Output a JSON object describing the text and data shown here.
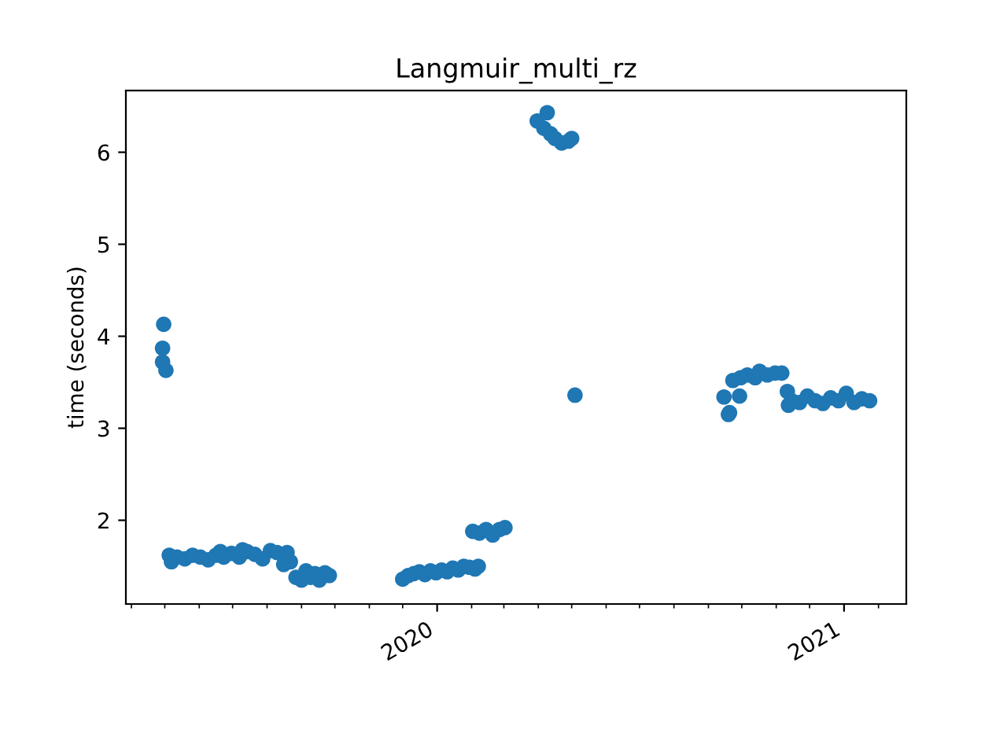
{
  "chart_data": {
    "type": "scatter",
    "title": "Langmuir_multi_rz",
    "ylabel": "time (seconds)",
    "marker": "circle",
    "grid": false,
    "legend": false,
    "xlim": [
      "2019-03-27",
      "2021-02-26"
    ],
    "xticks": [
      {
        "value": "2019-04-01",
        "label": null
      },
      {
        "value": "2019-05-01",
        "label": null
      },
      {
        "value": "2019-06-01",
        "label": null
      },
      {
        "value": "2019-07-01",
        "label": null
      },
      {
        "value": "2019-08-01",
        "label": null
      },
      {
        "value": "2019-09-01",
        "label": null
      },
      {
        "value": "2019-10-01",
        "label": null
      },
      {
        "value": "2019-11-01",
        "label": null
      },
      {
        "value": "2019-12-01",
        "label": null
      },
      {
        "value": "2020-01-01",
        "label": "2020"
      },
      {
        "value": "2020-02-01",
        "label": null
      },
      {
        "value": "2020-03-01",
        "label": null
      },
      {
        "value": "2020-04-01",
        "label": null
      },
      {
        "value": "2020-05-01",
        "label": null
      },
      {
        "value": "2020-06-01",
        "label": null
      },
      {
        "value": "2020-07-01",
        "label": null
      },
      {
        "value": "2020-08-01",
        "label": null
      },
      {
        "value": "2020-09-01",
        "label": null
      },
      {
        "value": "2020-10-01",
        "label": null
      },
      {
        "value": "2020-11-01",
        "label": null
      },
      {
        "value": "2020-12-01",
        "label": null
      },
      {
        "value": "2021-01-01",
        "label": "2021"
      },
      {
        "value": "2021-02-01",
        "label": null
      }
    ],
    "ylim": [
      1.09,
      6.67
    ],
    "yticks": [
      2,
      3,
      4,
      5,
      6
    ],
    "series": [
      {
        "color": "#1f77b4",
        "x": [
          "2019-04-30",
          "2019-04-29",
          "2019-04-29",
          "2019-05-02",
          "2019-05-05",
          "2019-05-07",
          "2019-05-12",
          "2019-05-19",
          "2019-05-26",
          "2019-06-02",
          "2019-06-09",
          "2019-06-16",
          "2019-06-23",
          "2019-06-30",
          "2019-07-07",
          "2019-07-14",
          "2019-07-21",
          "2019-07-28",
          "2019-08-04",
          "2019-08-10",
          "2019-07-10",
          "2019-06-20",
          "2019-08-16",
          "2019-08-19",
          "2019-08-22",
          "2019-08-27",
          "2019-09-01",
          "2019-09-05",
          "2019-09-09",
          "2019-09-13",
          "2019-09-17",
          "2019-09-22",
          "2019-09-26",
          "2019-12-01",
          "2019-12-06",
          "2019-12-11",
          "2019-12-16",
          "2019-12-21",
          "2019-12-26",
          "2019-12-31",
          "2020-01-05",
          "2020-01-10",
          "2020-01-15",
          "2020-01-20",
          "2020-01-25",
          "2020-01-30",
          "2020-02-04",
          "2020-02-07",
          "2020-02-02",
          "2020-02-08",
          "2020-02-14",
          "2020-02-20",
          "2020-02-26",
          "2020-03-02",
          "2020-03-31",
          "2020-04-09",
          "2020-04-06",
          "2020-04-12",
          "2020-04-16",
          "2020-04-22",
          "2020-04-28",
          "2020-05-01",
          "2020-05-04",
          "2020-09-15",
          "2020-09-19",
          "2020-09-20",
          "2020-09-23",
          "2020-09-29",
          "2020-09-30",
          "2020-10-06",
          "2020-10-13",
          "2020-10-17",
          "2020-10-24",
          "2020-10-31",
          "2020-11-06",
          "2020-11-11",
          "2020-11-12",
          "2020-11-15",
          "2020-11-22",
          "2020-11-29",
          "2020-12-06",
          "2020-12-13",
          "2020-12-20",
          "2020-12-27",
          "2021-01-03",
          "2021-01-10",
          "2021-01-17",
          "2021-01-24"
        ],
        "values": [
          4.13,
          3.87,
          3.72,
          3.63,
          1.62,
          1.55,
          1.6,
          1.58,
          1.62,
          1.6,
          1.57,
          1.62,
          1.6,
          1.64,
          1.6,
          1.66,
          1.63,
          1.58,
          1.67,
          1.65,
          1.68,
          1.66,
          1.52,
          1.65,
          1.55,
          1.38,
          1.35,
          1.45,
          1.38,
          1.42,
          1.35,
          1.43,
          1.4,
          1.36,
          1.4,
          1.42,
          1.44,
          1.41,
          1.45,
          1.43,
          1.46,
          1.44,
          1.48,
          1.46,
          1.5,
          1.49,
          1.47,
          1.5,
          1.88,
          1.86,
          1.9,
          1.84,
          1.9,
          1.92,
          6.34,
          6.43,
          6.26,
          6.2,
          6.15,
          6.1,
          6.12,
          6.15,
          3.36,
          3.34,
          3.15,
          3.17,
          3.52,
          3.35,
          3.55,
          3.58,
          3.55,
          3.62,
          3.58,
          3.6,
          3.6,
          3.4,
          3.25,
          3.3,
          3.28,
          3.35,
          3.3,
          3.27,
          3.33,
          3.3,
          3.38,
          3.28,
          3.32,
          3.3
        ]
      }
    ]
  }
}
